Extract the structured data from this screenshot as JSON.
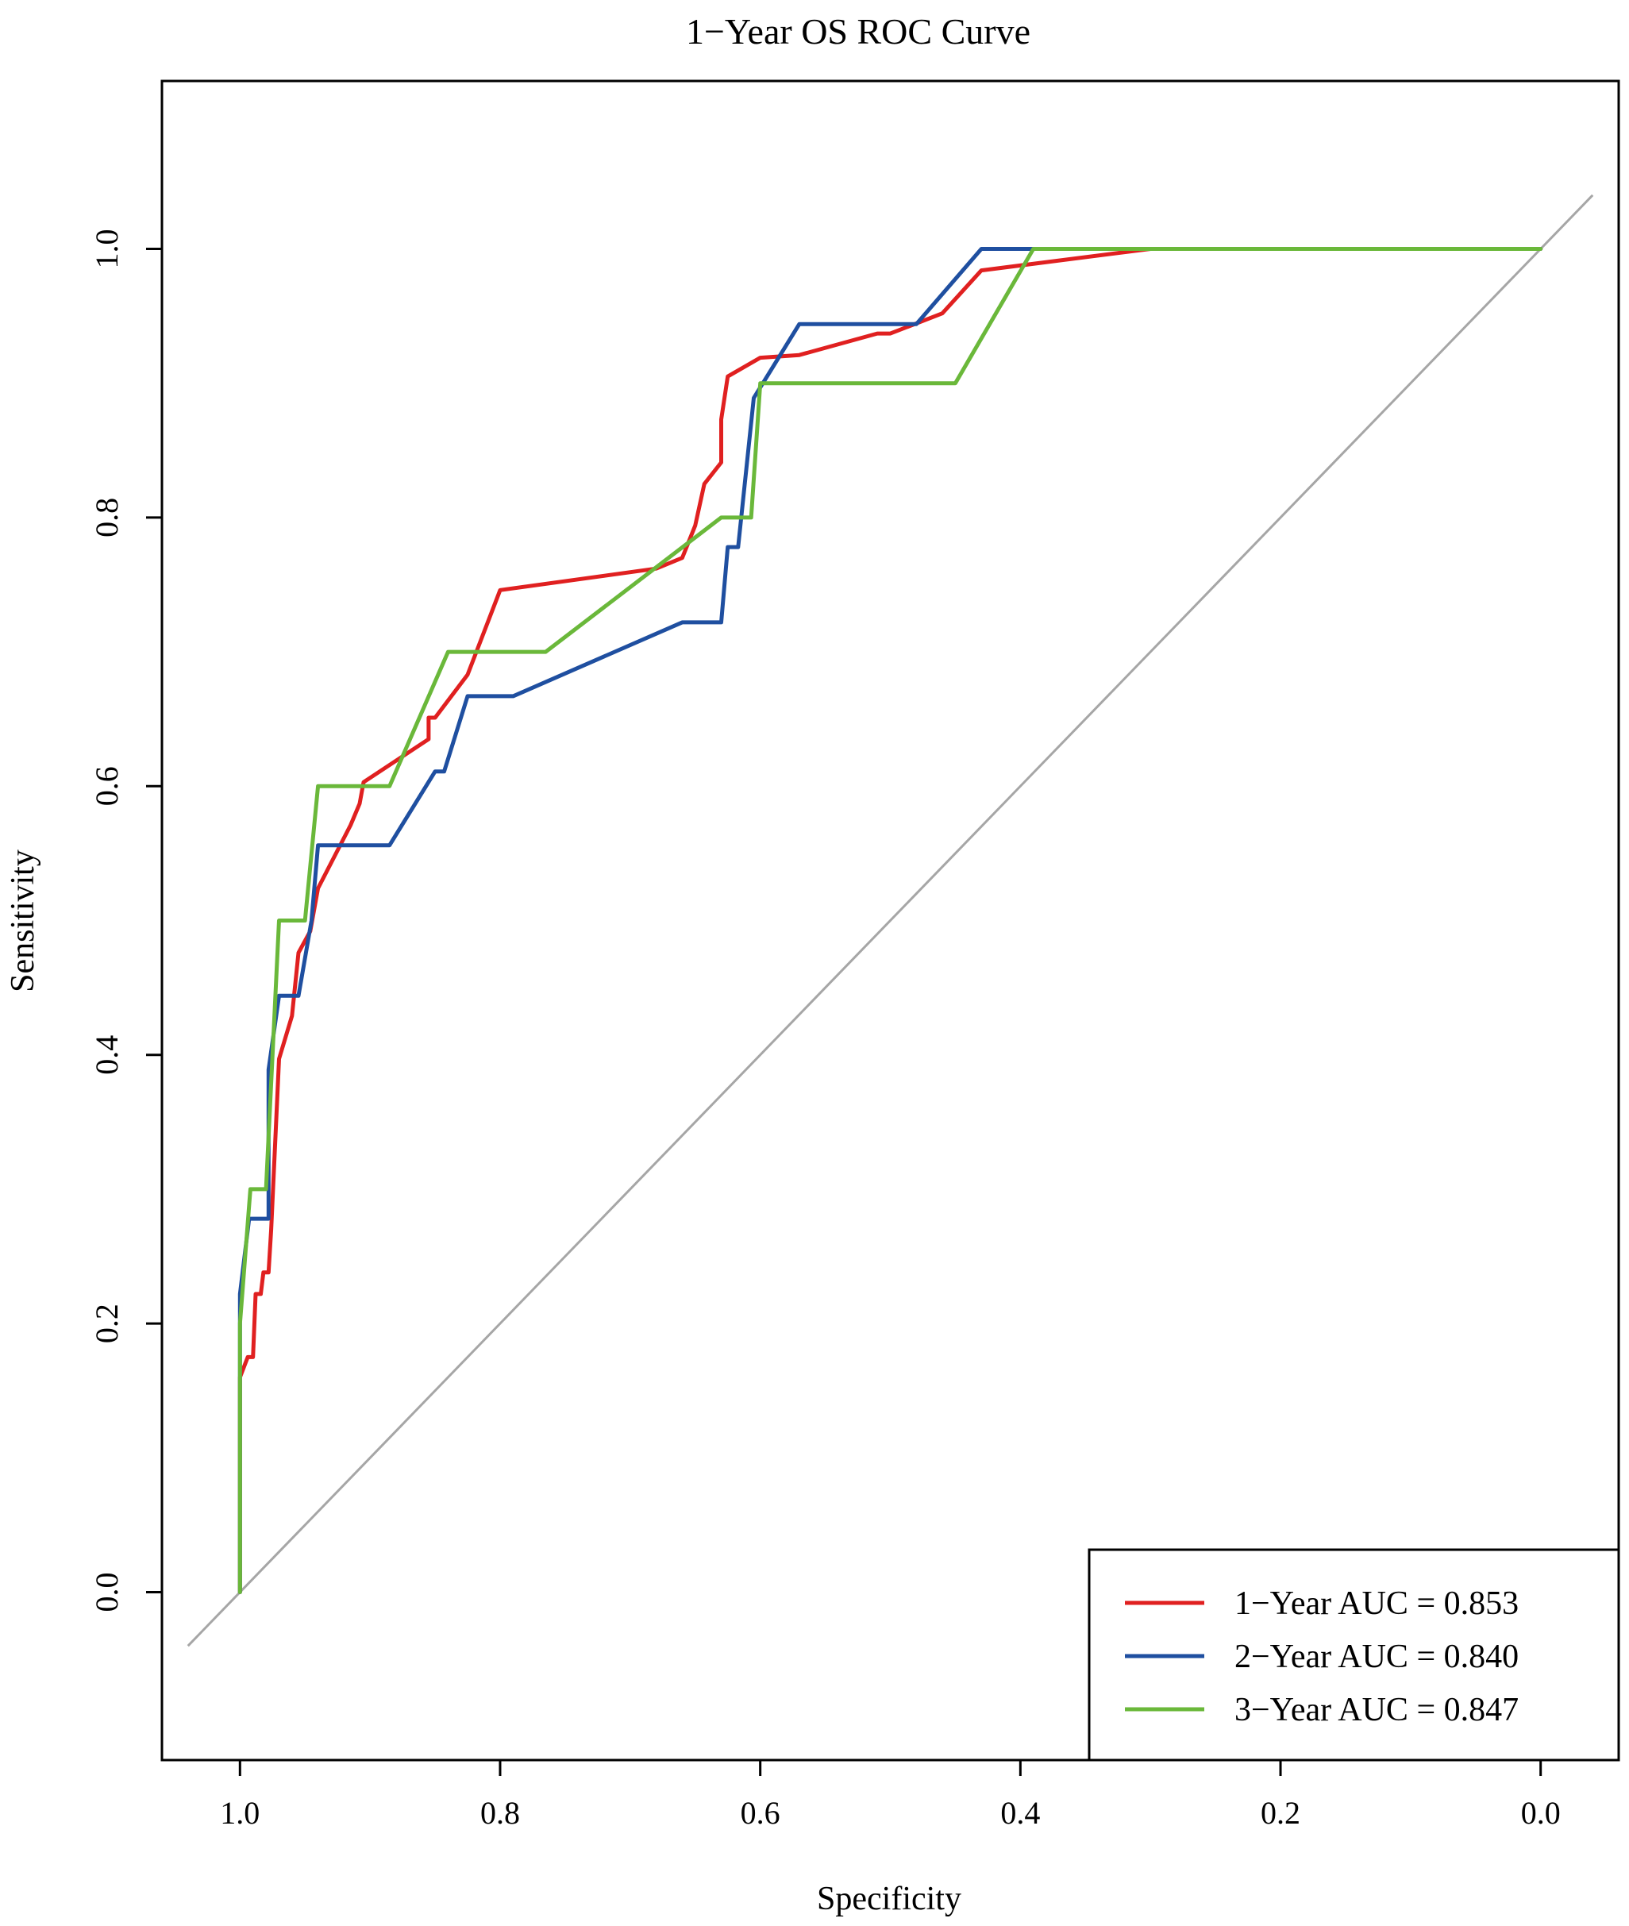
{
  "chart_data": {
    "type": "line",
    "title": "1−Year OS ROC Curve",
    "xlabel": "Specificity",
    "ylabel": "Sensitivity",
    "xlim": [
      1.06,
      -0.06
    ],
    "ylim": [
      -0.125,
      1.125
    ],
    "x_reversed": true,
    "x_ticks": [
      1.0,
      0.8,
      0.6,
      0.4,
      0.2,
      0.0
    ],
    "x_tick_labels": [
      "1.0",
      "0.8",
      "0.6",
      "0.4",
      "0.2",
      "0.0"
    ],
    "y_ticks": [
      0.0,
      0.2,
      0.4,
      0.6,
      0.8,
      1.0
    ],
    "y_tick_labels": [
      "0.0",
      "0.2",
      "0.4",
      "0.6",
      "0.8",
      "1.0"
    ],
    "grid": false,
    "legend_position": "bottom-right",
    "reference_line": {
      "color": "#a6a6a6",
      "points": [
        [
          1.04,
          -0.04
        ],
        [
          -0.04,
          1.04
        ]
      ]
    },
    "series": [
      {
        "name": "1−Year AUC = 0.853",
        "color": "#e02020",
        "points": [
          [
            1.0,
            0.0
          ],
          [
            1.0,
            0.16
          ],
          [
            0.994,
            0.175
          ],
          [
            0.99,
            0.175
          ],
          [
            0.988,
            0.222
          ],
          [
            0.984,
            0.222
          ],
          [
            0.982,
            0.238
          ],
          [
            0.978,
            0.238
          ],
          [
            0.976,
            0.27
          ],
          [
            0.97,
            0.397
          ],
          [
            0.96,
            0.429
          ],
          [
            0.955,
            0.476
          ],
          [
            0.946,
            0.492
          ],
          [
            0.94,
            0.524
          ],
          [
            0.915,
            0.571
          ],
          [
            0.908,
            0.587
          ],
          [
            0.905,
            0.603
          ],
          [
            0.855,
            0.635
          ],
          [
            0.855,
            0.651
          ],
          [
            0.85,
            0.651
          ],
          [
            0.825,
            0.683
          ],
          [
            0.8,
            0.746
          ],
          [
            0.68,
            0.762
          ],
          [
            0.66,
            0.77
          ],
          [
            0.65,
            0.794
          ],
          [
            0.643,
            0.825
          ],
          [
            0.63,
            0.841
          ],
          [
            0.63,
            0.873
          ],
          [
            0.625,
            0.905
          ],
          [
            0.6,
            0.919
          ],
          [
            0.57,
            0.921
          ],
          [
            0.51,
            0.937
          ],
          [
            0.5,
            0.937
          ],
          [
            0.46,
            0.952
          ],
          [
            0.43,
            0.984
          ],
          [
            0.3,
            1.0
          ],
          [
            0.0,
            1.0
          ]
        ]
      },
      {
        "name": "2−Year AUC = 0.840",
        "color": "#1f4fa0",
        "points": [
          [
            1.0,
            0.0
          ],
          [
            1.0,
            0.222
          ],
          [
            0.993,
            0.278
          ],
          [
            0.978,
            0.278
          ],
          [
            0.978,
            0.389
          ],
          [
            0.97,
            0.444
          ],
          [
            0.955,
            0.444
          ],
          [
            0.945,
            0.5
          ],
          [
            0.94,
            0.556
          ],
          [
            0.885,
            0.556
          ],
          [
            0.85,
            0.611
          ],
          [
            0.843,
            0.611
          ],
          [
            0.825,
            0.667
          ],
          [
            0.79,
            0.667
          ],
          [
            0.66,
            0.722
          ],
          [
            0.63,
            0.722
          ],
          [
            0.625,
            0.778
          ],
          [
            0.617,
            0.778
          ],
          [
            0.605,
            0.889
          ],
          [
            0.57,
            0.944
          ],
          [
            0.48,
            0.944
          ],
          [
            0.43,
            1.0
          ],
          [
            0.0,
            1.0
          ]
        ]
      },
      {
        "name": "3−Year AUC = 0.847",
        "color": "#6ab83a",
        "points": [
          [
            1.0,
            0.0
          ],
          [
            1.0,
            0.2
          ],
          [
            0.992,
            0.3
          ],
          [
            0.98,
            0.3
          ],
          [
            0.97,
            0.5
          ],
          [
            0.95,
            0.5
          ],
          [
            0.94,
            0.6
          ],
          [
            0.885,
            0.6
          ],
          [
            0.84,
            0.7
          ],
          [
            0.765,
            0.7
          ],
          [
            0.63,
            0.8
          ],
          [
            0.607,
            0.8
          ],
          [
            0.6,
            0.9
          ],
          [
            0.45,
            0.9
          ],
          [
            0.39,
            1.0
          ],
          [
            0.0,
            1.0
          ]
        ]
      }
    ]
  }
}
